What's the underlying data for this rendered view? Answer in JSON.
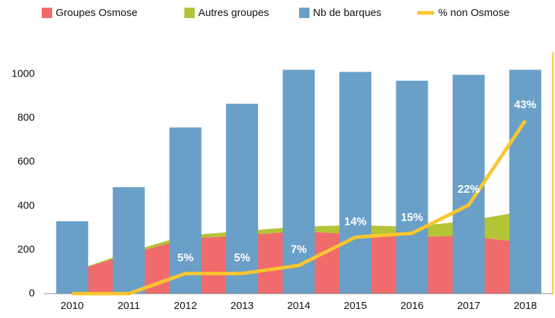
{
  "chart_data": {
    "type": "combo",
    "categories": [
      "2010",
      "2011",
      "2012",
      "2013",
      "2014",
      "2015",
      "2016",
      "2017",
      "2018"
    ],
    "ylim": [
      0,
      1100
    ],
    "yticks": [
      0,
      200,
      400,
      600,
      800,
      1000
    ],
    "y2lim": [
      0,
      60
    ],
    "series": [
      {
        "name": "Groupes Osmose",
        "type": "area",
        "stacked": true,
        "color": "#f06b6b",
        "values": [
          100,
          180,
          250,
          265,
          285,
          270,
          260,
          262,
          232
        ]
      },
      {
        "name": "Autres groupes",
        "type": "area",
        "stacked": true,
        "color": "#b5c337",
        "values": [
          0,
          10,
          15,
          20,
          20,
          42,
          45,
          70,
          145
        ]
      },
      {
        "name": "Nb de barques",
        "type": "bar",
        "color": "#6aa0c7",
        "values": [
          330,
          485,
          757,
          865,
          1020,
          1010,
          970,
          997,
          1020
        ]
      },
      {
        "name": "% non Osmose",
        "type": "line",
        "axis": "y2",
        "color": "#fcc52e",
        "values": [
          0,
          0,
          5,
          5,
          7,
          14,
          15,
          22,
          43
        ],
        "value_labels": [
          null,
          null,
          "5%",
          "5%",
          "7%",
          "14%",
          "15%",
          "22%",
          "43%"
        ]
      }
    ]
  }
}
